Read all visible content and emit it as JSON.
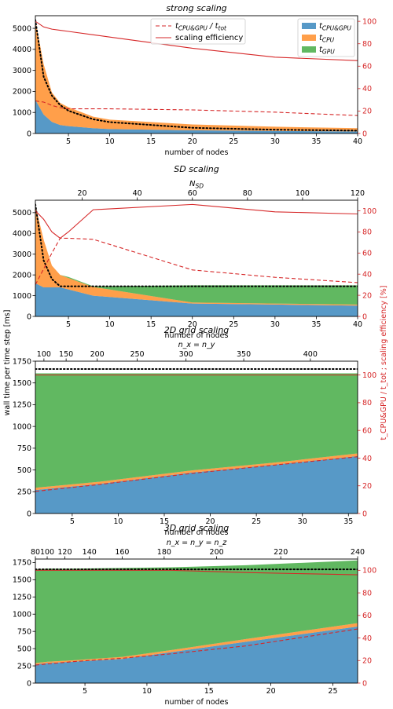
{
  "figure": {
    "shared_ylabel_left": "wall time per time step [ms]",
    "shared_ylabel_right": "t_CPU&GPU / t_tot ; scaling efficiency [%]"
  },
  "colors": {
    "cpu_gpu": "#1f77b4",
    "cpu": "#ff7f0e",
    "gpu": "#2ca02c",
    "red": "#d62728",
    "black": "#000000"
  },
  "chart_data": [
    {
      "type": "area",
      "title": "strong scaling",
      "xlabel": "number of nodes",
      "x_ticks": [
        5,
        10,
        15,
        20,
        25,
        30,
        35,
        40
      ],
      "xlim": [
        1,
        40
      ],
      "ylim": [
        0,
        5600
      ],
      "y_ticks": [
        0,
        1000,
        2000,
        3000,
        4000,
        5000
      ],
      "y2lim": [
        0,
        105
      ],
      "y2_ticks": [
        0,
        20,
        40,
        60,
        80,
        100
      ],
      "legend": {
        "placement": "top",
        "entries": [
          {
            "key": "ratio",
            "label": "t_CPU&GPU / t_tot"
          },
          {
            "key": "eff",
            "label": "scaling efficiency"
          },
          {
            "key": "cpu_gpu",
            "label": "t_CPU&GPU"
          },
          {
            "key": "cpu",
            "label": "t_CPU"
          },
          {
            "key": "gpu",
            "label": "t_GPU"
          }
        ]
      },
      "x": [
        1,
        2,
        3,
        4,
        5,
        8,
        10,
        20,
        30,
        40
      ],
      "stack": [
        {
          "key": "cpu_gpu",
          "values": [
            1600,
            900,
            550,
            400,
            350,
            250,
            210,
            150,
            120,
            100
          ]
        },
        {
          "key": "cpu",
          "values": [
            3800,
            2400,
            1400,
            1050,
            900,
            550,
            450,
            280,
            200,
            150
          ]
        },
        {
          "key": "gpu",
          "values": [
            0,
            0,
            0,
            0,
            0,
            0,
            0,
            0,
            0,
            0
          ]
        }
      ],
      "ideal": [
        5400,
        2700,
        1800,
        1350,
        1080,
        675,
        540,
        270,
        180,
        135
      ],
      "ratio": [
        29,
        28,
        25,
        23,
        22,
        22,
        22,
        21,
        19,
        16
      ],
      "efficiency": [
        100,
        95,
        93,
        92,
        91,
        88,
        86,
        76,
        68,
        65
      ]
    },
    {
      "type": "area",
      "title": "SD scaling",
      "xlabel": "number of nodes",
      "top_axis_label": "N_SD",
      "top_ticks": [
        20,
        40,
        60,
        80,
        100,
        120
      ],
      "top_per_node": 3,
      "x_ticks": [
        5,
        10,
        15,
        20,
        25,
        30,
        35,
        40
      ],
      "xlim": [
        1,
        40
      ],
      "ylim": [
        0,
        5600
      ],
      "y_ticks": [
        0,
        1000,
        2000,
        3000,
        4000,
        5000
      ],
      "y2lim": [
        0,
        110
      ],
      "y2_ticks": [
        0,
        20,
        40,
        60,
        80,
        100
      ],
      "x": [
        1,
        2,
        3,
        4,
        5,
        8,
        20,
        30,
        40
      ],
      "stack": [
        {
          "key": "cpu_gpu",
          "values": [
            1600,
            1400,
            1400,
            1400,
            1300,
            1000,
            620,
            570,
            520
          ]
        },
        {
          "key": "cpu",
          "values": [
            3750,
            2300,
            1050,
            600,
            550,
            420,
            50,
            50,
            50
          ]
        },
        {
          "key": "gpu",
          "values": [
            0,
            0,
            0,
            0,
            50,
            30,
            830,
            880,
            930
          ]
        }
      ],
      "ideal": [
        5400,
        2700,
        1800,
        1450,
        1450,
        1450,
        1450,
        1450,
        1450
      ],
      "ratio": [
        30,
        45,
        60,
        74,
        74,
        73,
        44,
        37,
        32
      ],
      "efficiency": [
        100,
        92,
        80,
        74,
        80,
        101,
        106,
        99,
        97
      ]
    },
    {
      "type": "area",
      "title": "2D grid scaling",
      "xlabel": "number of nodes",
      "top_axis_label": "n_x = n_y",
      "top_ticks": [
        100,
        150,
        200,
        250,
        300,
        350,
        400
      ],
      "top_scale": 72,
      "x_ticks": [
        5,
        10,
        15,
        20,
        25,
        30,
        35
      ],
      "xlim": [
        1,
        36
      ],
      "ylim": [
        0,
        1750
      ],
      "y_ticks": [
        0,
        250,
        500,
        750,
        1000,
        1250,
        1500,
        1750
      ],
      "y2lim": [
        0,
        110
      ],
      "y2_ticks": [
        0,
        20,
        40,
        60,
        80,
        100
      ],
      "x": [
        1,
        8,
        18,
        27,
        36
      ],
      "stack": [
        {
          "key": "cpu_gpu",
          "values": [
            270,
            340,
            470,
            560,
            660
          ]
        },
        {
          "key": "cpu",
          "values": [
            25,
            25,
            25,
            25,
            30
          ]
        },
        {
          "key": "gpu",
          "values": [
            1315,
            1245,
            1115,
            1025,
            920
          ]
        }
      ],
      "ideal": [
        1660,
        1660,
        1660,
        1660,
        1660
      ],
      "ratio": [
        16,
        21,
        29,
        35,
        41
      ],
      "efficiency": [
        100,
        100,
        100,
        100,
        100
      ]
    },
    {
      "type": "area",
      "title": "3D grid scaling",
      "xlabel": "number of nodes",
      "top_axis_label": "n_x = n_y = n_z",
      "top_ticks": [
        80,
        100,
        120,
        140,
        160,
        180,
        200,
        220,
        240
      ],
      "top_scale": 80,
      "x_ticks": [
        5,
        10,
        15,
        20,
        25
      ],
      "xlim": [
        1,
        27
      ],
      "ylim": [
        0,
        1800
      ],
      "y_ticks": [
        0,
        250,
        500,
        750,
        1000,
        1250,
        1500,
        1750
      ],
      "y2lim": [
        0,
        110
      ],
      "y2_ticks": [
        0,
        20,
        40,
        60,
        80,
        100
      ],
      "x": [
        1,
        2,
        4,
        8,
        12,
        18,
        27
      ],
      "stack": [
        {
          "key": "cpu_gpu",
          "values": [
            270,
            290,
            310,
            350,
            450,
            600,
            820
          ]
        },
        {
          "key": "cpu",
          "values": [
            20,
            20,
            20,
            30,
            30,
            40,
            50
          ]
        },
        {
          "key": "gpu",
          "values": [
            1360,
            1350,
            1330,
            1290,
            1200,
            1070,
            910
          ]
        }
      ],
      "ideal": [
        1650,
        1650,
        1650,
        1650,
        1650,
        1650,
        1650
      ],
      "ratio": [
        16,
        17,
        19,
        22,
        26,
        33,
        48
      ],
      "efficiency": [
        100,
        100,
        100,
        100,
        100,
        98,
        96
      ]
    }
  ]
}
